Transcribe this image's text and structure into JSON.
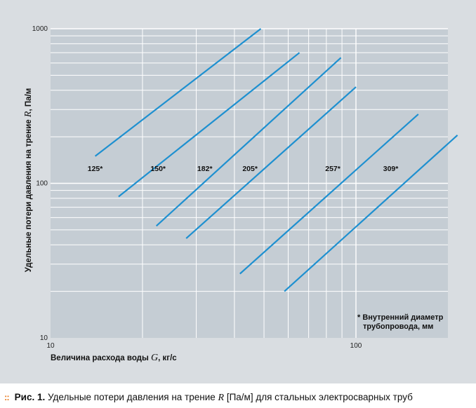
{
  "chart_data": {
    "type": "line",
    "x_scale": "log",
    "y_scale": "log",
    "xlim": [
      10,
      200
    ],
    "ylim": [
      10,
      1000
    ],
    "x_ticks": [
      10,
      100
    ],
    "y_ticks": [
      10,
      100,
      1000
    ],
    "x_tick_labels": [
      "10",
      "100"
    ],
    "y_tick_labels": [
      "10",
      "100",
      "1000"
    ],
    "grid": true,
    "line_color": "#1e90d0",
    "xlabel": "Величина расхода воды",
    "xlabel_symbol": "G",
    "xlabel_unit": ", кг/с",
    "ylabel": "Удельные потери давления на трение",
    "ylabel_symbol": "R",
    "ylabel_unit": ", Па/м",
    "series": [
      {
        "name": "125*",
        "x": [
          14.0,
          48.8
        ],
        "y": [
          150,
          1000
        ],
        "label_at": [
          14.0,
          120
        ]
      },
      {
        "name": "150*",
        "x": [
          16.7,
          65.3
        ],
        "y": [
          82,
          700
        ],
        "label_at": [
          22.5,
          120
        ]
      },
      {
        "name": "182*",
        "x": [
          22.2,
          89.3
        ],
        "y": [
          53,
          650
        ],
        "label_at": [
          32.0,
          120
        ]
      },
      {
        "name": "205*",
        "x": [
          27.8,
          100.0
        ],
        "y": [
          44,
          420
        ],
        "label_at": [
          45.0,
          120
        ]
      },
      {
        "name": "257*",
        "x": [
          41.7,
          160.0
        ],
        "y": [
          26,
          280
        ],
        "label_at": [
          84.0,
          120
        ]
      },
      {
        "name": "309*",
        "x": [
          58.3,
          215.0
        ],
        "y": [
          20,
          205
        ],
        "label_at": [
          130.0,
          120
        ]
      }
    ]
  },
  "note": {
    "line1": "* Внутренний диаметр",
    "line2": "трубопровода, мм"
  },
  "caption": {
    "dots": "::",
    "label": "Рис. 1.",
    "text_before": " Удельные потери давления на трение ",
    "symbol": "R",
    "text_after": " [Па/м] для стальных электросварных труб"
  }
}
